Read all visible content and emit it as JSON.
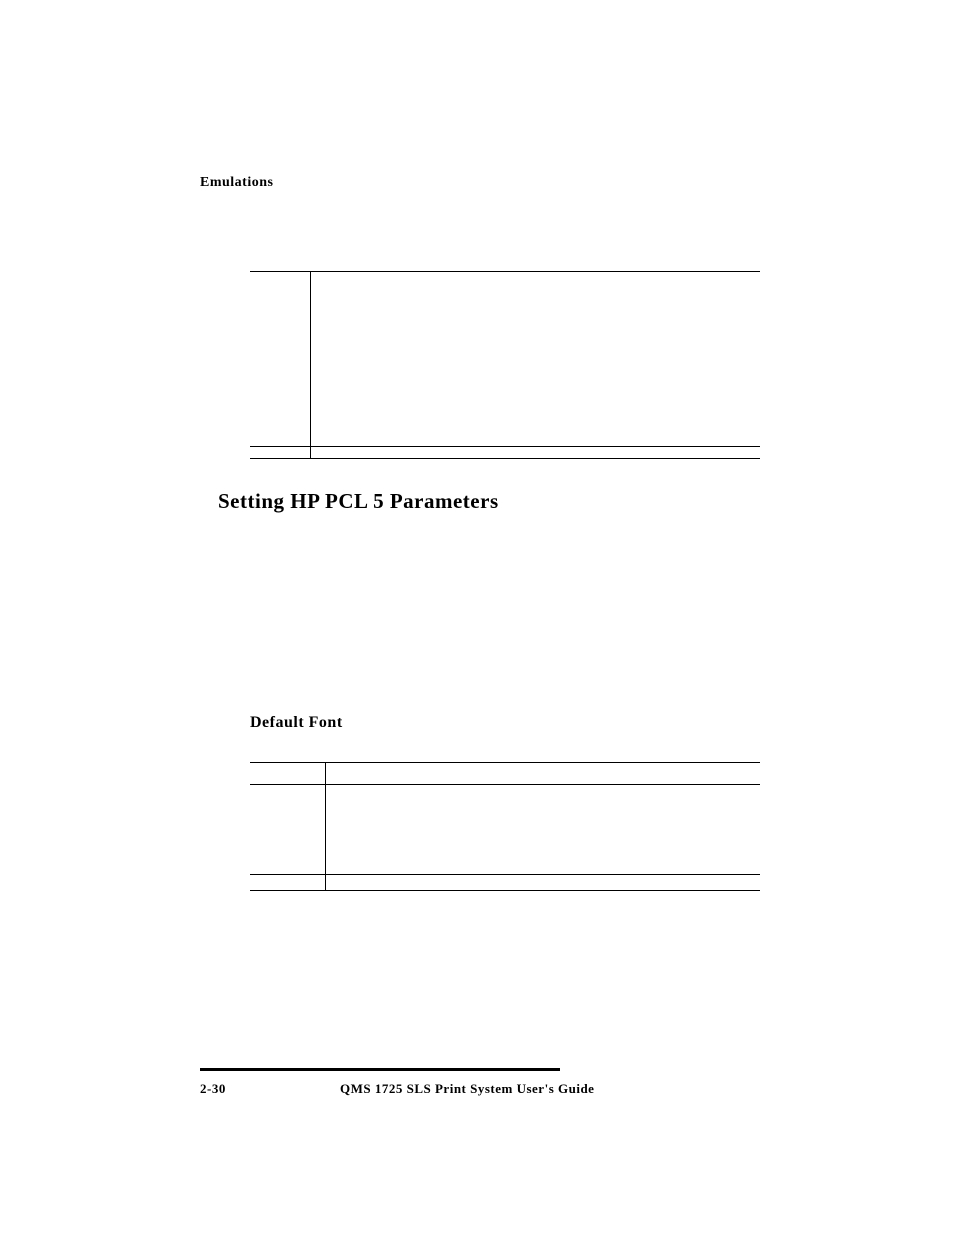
{
  "section_label": "Emulations",
  "table1": {
    "rows": [
      {
        "height_class": "row-main"
      },
      {
        "height_class": "row-small"
      }
    ]
  },
  "heading_main": "Setting HP PCL 5 Parameters",
  "heading_sub": "Default Font",
  "table2": {
    "rows": [
      {
        "height_class": "row-header"
      },
      {
        "height_class": "row-body"
      },
      {
        "height_class": "row-footer"
      }
    ]
  },
  "footer": {
    "page_number": "2-30",
    "title": "QMS 1725 SLS Print System User's Guide"
  },
  "colors": {
    "background": "#ffffff",
    "text": "#000000",
    "border": "#000000"
  }
}
